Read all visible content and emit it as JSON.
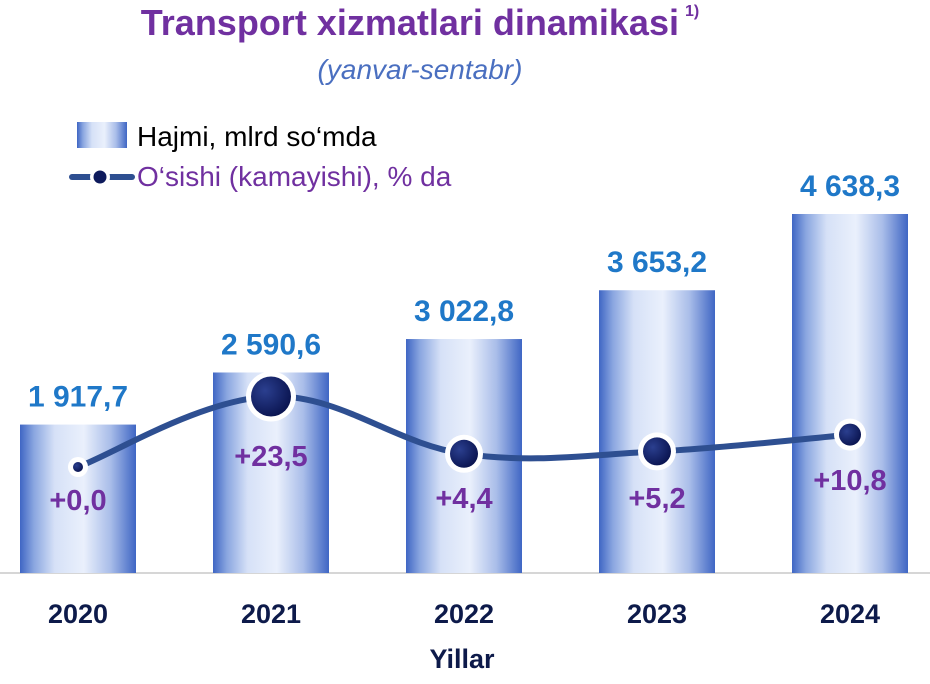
{
  "title": "Transport xizmatlari dinamikasi",
  "title_note": "1)",
  "subtitle": "(yanvar-sentabr)",
  "legend": {
    "bar_label": "Hajmi, mlrd so‘mda",
    "line_label": "O‘sishi (kamayishi), % da"
  },
  "chart_data": {
    "type": "bar",
    "categories": [
      "2020",
      "2021",
      "2022",
      "2023",
      "2024"
    ],
    "series": [
      {
        "name": "Hajmi, mlrd so‘mda",
        "type": "bar",
        "values": [
          1917.7,
          2590.6,
          3022.8,
          3653.2,
          4638.3
        ],
        "labels": [
          "1 917,7",
          "2 590,6",
          "3 022,8",
          "3 653,2",
          "4 638,3"
        ]
      },
      {
        "name": "O‘sishi (kamayishi), % da",
        "type": "line",
        "values": [
          0.0,
          23.5,
          4.4,
          5.2,
          10.8
        ],
        "labels": [
          "+0,0",
          "+23,5",
          "+4,4",
          "+5,2",
          "+10,8"
        ]
      }
    ],
    "xlabel": "Yillar",
    "ylabel": "",
    "legend_position": "top-left",
    "grid": false
  },
  "colors": {
    "title": "#7030a0",
    "subtitle": "#4a6fc0",
    "bar_value": "#1f78c8",
    "line": "#2e4f91",
    "marker": "#0d1a5c",
    "growth_label": "#7030a0",
    "axis_text": "#0d1a4a"
  }
}
